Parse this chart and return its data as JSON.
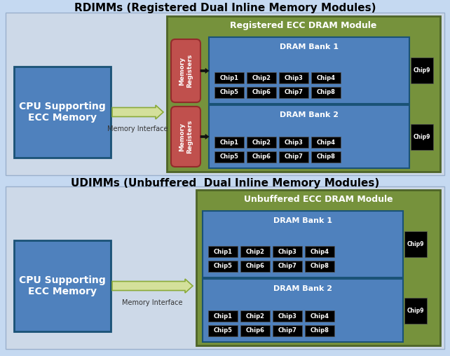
{
  "bg_color": "#c5d9f1",
  "title_rdimm": "RDIMMs (Registered Dual Inline Memory Modules)",
  "title_udimm": "UDIMMs (Unbuffered  Dual Inline Memory Modules)",
  "cpu_text": "CPU Supporting\nECC Memory",
  "cpu_color": "#4f81bd",
  "cpu_border": "#1a5276",
  "green_box_color": "#76923c",
  "green_box_border": "#4e6428",
  "blue_bank_color": "#4f81bd",
  "blue_bank_border": "#1a5276",
  "red_reg_color": "#c0504d",
  "red_reg_border": "#922b2b",
  "chip_color": "#000000",
  "chip_text_color": "#ffffff",
  "arrow_color": "#d4e09b",
  "arrow_edge_color": "#8aaa3a",
  "section_bg": "#cdd9e8",
  "section_border": "#9ab0cc",
  "mem_interface_label": "Memory Interface",
  "rdimm_module_label": "Registered ECC DRAM Module",
  "udimm_module_label": "Unbuffered ECC DRAM Module",
  "dram_bank1_label": "DRAM Bank 1",
  "dram_bank2_label": "DRAM Bank 2",
  "mem_reg_label": "Memory\nRegisters",
  "chips_row1": [
    "Chip1",
    "Chip2",
    "Chip3",
    "Chip4"
  ],
  "chips_row2": [
    "Chip5",
    "Chip6",
    "Chip7",
    "Chip8"
  ],
  "chip9_label": "Chip9"
}
